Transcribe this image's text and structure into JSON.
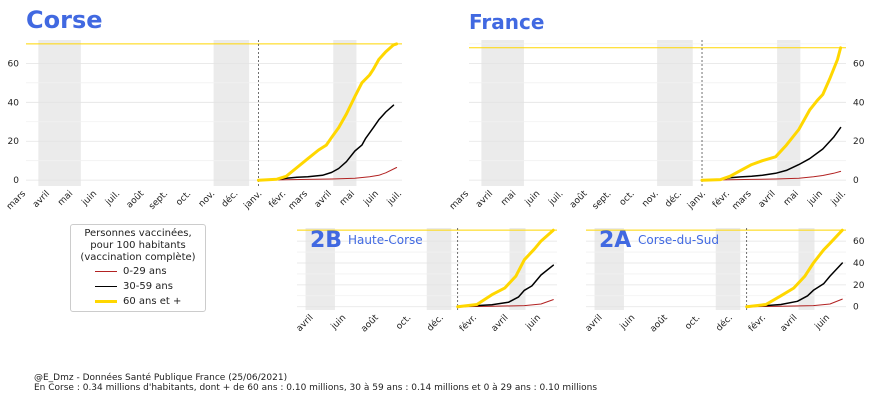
{
  "legend": {
    "title_lines": [
      "Personnes vaccinées,",
      "pour 100 habitants",
      "(vaccination complète)"
    ],
    "entries": [
      {
        "label": "0-29 ans",
        "color": "#b22222"
      },
      {
        "label": "30-59 ans",
        "color": "#000000"
      },
      {
        "label": "60 ans et +",
        "color": "#ffd700"
      }
    ]
  },
  "credits": {
    "line1": "@E_Dmz - Données Santé Publique France (25/06/2021)",
    "line2": "En Corse : 0.34 millions d'habitants, dont + de 60 ans : 0.10 millions, 30 à 59 ans : 0.14 millions et 0 à 29 ans : 0.10 millions"
  },
  "chart_data": [
    {
      "id": "corse",
      "type": "line",
      "title": "Corse",
      "subtitle": "",
      "y_ticks": [
        0,
        20,
        40,
        60
      ],
      "ylim": [
        -3,
        72
      ],
      "x_range": [
        "2020-03-01",
        "2021-07-01"
      ],
      "x_ticks": [
        {
          "date": "2020-03-01",
          "label": "mars"
        },
        {
          "date": "2020-04-01",
          "label": "avril"
        },
        {
          "date": "2020-05-01",
          "label": "mai"
        },
        {
          "date": "2020-06-01",
          "label": "juin"
        },
        {
          "date": "2020-07-01",
          "label": "juil."
        },
        {
          "date": "2020-08-01",
          "label": "août"
        },
        {
          "date": "2020-09-01",
          "label": "sept."
        },
        {
          "date": "2020-10-01",
          "label": "oct."
        },
        {
          "date": "2020-11-01",
          "label": "nov."
        },
        {
          "date": "2020-12-01",
          "label": "déc."
        },
        {
          "date": "2021-01-01",
          "label": "janv."
        },
        {
          "date": "2021-02-01",
          "label": "févr."
        },
        {
          "date": "2021-03-01",
          "label": "mars"
        },
        {
          "date": "2021-04-01",
          "label": "avril"
        },
        {
          "date": "2021-05-01",
          "label": "mai"
        },
        {
          "date": "2021-06-01",
          "label": "juin"
        },
        {
          "date": "2021-07-01",
          "label": "juil."
        }
      ],
      "lockdowns": [
        [
          "2020-03-17",
          "2020-05-11"
        ],
        [
          "2020-10-30",
          "2020-12-15"
        ],
        [
          "2021-04-03",
          "2021-05-03"
        ]
      ],
      "vline": "2020-12-27",
      "hline": 70,
      "series": [
        {
          "name": "0-29 ans",
          "color": "#b22222",
          "points": [
            [
              "2020-12-27",
              0
            ],
            [
              "2021-02-01",
              0.2
            ],
            [
              "2021-03-01",
              0.4
            ],
            [
              "2021-04-01",
              0.6
            ],
            [
              "2021-05-01",
              1
            ],
            [
              "2021-05-20",
              1.8
            ],
            [
              "2021-06-01",
              2.5
            ],
            [
              "2021-06-10",
              3.8
            ],
            [
              "2021-06-24",
              6.5
            ]
          ]
        },
        {
          "name": "30-59 ans",
          "color": "#000000",
          "points": [
            [
              "2020-12-27",
              0
            ],
            [
              "2021-01-20",
              0.3
            ],
            [
              "2021-02-01",
              1
            ],
            [
              "2021-02-15",
              1.5
            ],
            [
              "2021-03-01",
              1.8
            ],
            [
              "2021-03-20",
              2.5
            ],
            [
              "2021-04-01",
              4
            ],
            [
              "2021-04-10",
              6
            ],
            [
              "2021-04-20",
              9.5
            ],
            [
              "2021-05-01",
              15
            ],
            [
              "2021-05-10",
              18
            ],
            [
              "2021-05-15",
              21.5
            ],
            [
              "2021-05-25",
              27
            ],
            [
              "2021-06-01",
              31
            ],
            [
              "2021-06-10",
              35
            ],
            [
              "2021-06-20",
              38.5
            ]
          ]
        },
        {
          "name": "60 ans et +",
          "color": "#ffd700",
          "points": [
            [
              "2020-12-27",
              0
            ],
            [
              "2021-01-20",
              0.5
            ],
            [
              "2021-02-01",
              2
            ],
            [
              "2021-02-15",
              6.5
            ],
            [
              "2021-03-01",
              11
            ],
            [
              "2021-03-15",
              15.5
            ],
            [
              "2021-03-25",
              18
            ],
            [
              "2021-04-01",
              22
            ],
            [
              "2021-04-10",
              27
            ],
            [
              "2021-04-20",
              34
            ],
            [
              "2021-05-01",
              43
            ],
            [
              "2021-05-10",
              50
            ],
            [
              "2021-05-20",
              54
            ],
            [
              "2021-05-25",
              57
            ],
            [
              "2021-06-01",
              62
            ],
            [
              "2021-06-10",
              66
            ],
            [
              "2021-06-20",
              69.5
            ],
            [
              "2021-06-24",
              70
            ]
          ]
        }
      ]
    },
    {
      "id": "france",
      "type": "line",
      "title": "France",
      "subtitle": "",
      "y_ticks": [
        0,
        20,
        40,
        60
      ],
      "ylim": [
        -3,
        72
      ],
      "x_range": [
        "2020-03-01",
        "2021-07-01"
      ],
      "x_ticks": [
        {
          "date": "2020-03-01",
          "label": "mars"
        },
        {
          "date": "2020-04-01",
          "label": "avril"
        },
        {
          "date": "2020-05-01",
          "label": "mai"
        },
        {
          "date": "2020-06-01",
          "label": "juin"
        },
        {
          "date": "2020-07-01",
          "label": "juil."
        },
        {
          "date": "2020-08-01",
          "label": "août"
        },
        {
          "date": "2020-09-01",
          "label": "sept."
        },
        {
          "date": "2020-10-01",
          "label": "oct."
        },
        {
          "date": "2020-11-01",
          "label": "nov."
        },
        {
          "date": "2020-12-01",
          "label": "déc."
        },
        {
          "date": "2021-01-01",
          "label": "janv."
        },
        {
          "date": "2021-02-01",
          "label": "févr."
        },
        {
          "date": "2021-03-01",
          "label": "mars"
        },
        {
          "date": "2021-04-01",
          "label": "avril"
        },
        {
          "date": "2021-05-01",
          "label": "mai"
        },
        {
          "date": "2021-06-01",
          "label": "juin"
        },
        {
          "date": "2021-07-01",
          "label": "juil."
        }
      ],
      "lockdowns": [
        [
          "2020-03-17",
          "2020-05-11"
        ],
        [
          "2020-10-30",
          "2020-12-15"
        ],
        [
          "2021-04-03",
          "2021-05-03"
        ]
      ],
      "vline": "2020-12-27",
      "hline": 68,
      "series": [
        {
          "name": "0-29 ans",
          "color": "#b22222",
          "points": [
            [
              "2020-12-27",
              0
            ],
            [
              "2021-02-01",
              0.2
            ],
            [
              "2021-03-01",
              0.4
            ],
            [
              "2021-04-01",
              0.6
            ],
            [
              "2021-05-01",
              1
            ],
            [
              "2021-05-20",
              1.8
            ],
            [
              "2021-06-01",
              2.4
            ],
            [
              "2021-06-15",
              3.5
            ],
            [
              "2021-06-24",
              4.5
            ]
          ]
        },
        {
          "name": "30-59 ans",
          "color": "#000000",
          "points": [
            [
              "2020-12-27",
              0
            ],
            [
              "2021-01-20",
              0.3
            ],
            [
              "2021-02-01",
              1.2
            ],
            [
              "2021-02-15",
              1.7
            ],
            [
              "2021-03-01",
              2
            ],
            [
              "2021-03-15",
              2.5
            ],
            [
              "2021-04-01",
              3.5
            ],
            [
              "2021-04-15",
              5
            ],
            [
              "2021-05-01",
              8
            ],
            [
              "2021-05-15",
              11
            ],
            [
              "2021-06-01",
              16
            ],
            [
              "2021-06-15",
              22
            ],
            [
              "2021-06-24",
              27
            ]
          ]
        },
        {
          "name": "60 ans et +",
          "color": "#ffd700",
          "points": [
            [
              "2020-12-27",
              0
            ],
            [
              "2021-01-20",
              0.3
            ],
            [
              "2021-02-01",
              2
            ],
            [
              "2021-02-15",
              5
            ],
            [
              "2021-03-01",
              8
            ],
            [
              "2021-03-15",
              10
            ],
            [
              "2021-04-01",
              12
            ],
            [
              "2021-04-15",
              18
            ],
            [
              "2021-05-01",
              26
            ],
            [
              "2021-05-15",
              36
            ],
            [
              "2021-05-25",
              41
            ],
            [
              "2021-06-01",
              44
            ],
            [
              "2021-06-10",
              52
            ],
            [
              "2021-06-20",
              62
            ],
            [
              "2021-06-24",
              68
            ]
          ]
        }
      ]
    },
    {
      "id": "haute-corse",
      "type": "line",
      "title": "2B",
      "subtitle": "Haute-Corse",
      "y_ticks": [],
      "ylim": [
        -3,
        72
      ],
      "x_range": [
        "2020-03-01",
        "2021-07-01"
      ],
      "x_ticks": [
        {
          "date": "2020-04-01",
          "label": "avril"
        },
        {
          "date": "2020-06-01",
          "label": "juin"
        },
        {
          "date": "2020-08-01",
          "label": "août"
        },
        {
          "date": "2020-10-01",
          "label": "oct."
        },
        {
          "date": "2020-12-01",
          "label": "déc."
        },
        {
          "date": "2021-02-01",
          "label": "févr."
        },
        {
          "date": "2021-04-01",
          "label": "avril"
        },
        {
          "date": "2021-06-01",
          "label": "juin"
        }
      ],
      "lockdowns": [
        [
          "2020-03-17",
          "2020-05-11"
        ],
        [
          "2020-10-30",
          "2020-12-15"
        ],
        [
          "2021-04-03",
          "2021-05-03"
        ]
      ],
      "vline": "2020-12-27",
      "hline": 70,
      "series": [
        {
          "name": "0-29 ans",
          "color": "#b22222",
          "points": [
            [
              "2020-12-27",
              0
            ],
            [
              "2021-03-01",
              0.4
            ],
            [
              "2021-05-01",
              1
            ],
            [
              "2021-06-01",
              2.5
            ],
            [
              "2021-06-24",
              6.5
            ]
          ]
        },
        {
          "name": "30-59 ans",
          "color": "#000000",
          "points": [
            [
              "2020-12-27",
              0
            ],
            [
              "2021-02-01",
              1
            ],
            [
              "2021-03-01",
              1.8
            ],
            [
              "2021-04-01",
              4
            ],
            [
              "2021-04-20",
              9
            ],
            [
              "2021-05-01",
              15
            ],
            [
              "2021-05-15",
              19
            ],
            [
              "2021-06-01",
              29
            ],
            [
              "2021-06-24",
              38
            ]
          ]
        },
        {
          "name": "60 ans et +",
          "color": "#ffd700",
          "points": [
            [
              "2020-12-27",
              0
            ],
            [
              "2021-02-01",
              2
            ],
            [
              "2021-03-01",
              11
            ],
            [
              "2021-03-25",
              17
            ],
            [
              "2021-04-15",
              28
            ],
            [
              "2021-05-01",
              43
            ],
            [
              "2021-05-20",
              53
            ],
            [
              "2021-06-01",
              60
            ],
            [
              "2021-06-24",
              70
            ]
          ]
        }
      ]
    },
    {
      "id": "corse-du-sud",
      "type": "line",
      "title": "2A",
      "subtitle": "Corse-du-Sud",
      "y_ticks": [
        0,
        20,
        40,
        60
      ],
      "ylim": [
        -3,
        72
      ],
      "x_range": [
        "2020-03-01",
        "2021-07-01"
      ],
      "x_ticks": [
        {
          "date": "2020-04-01",
          "label": "avril"
        },
        {
          "date": "2020-06-01",
          "label": "juin"
        },
        {
          "date": "2020-08-01",
          "label": "août"
        },
        {
          "date": "2020-10-01",
          "label": "oct."
        },
        {
          "date": "2020-12-01",
          "label": "déc."
        },
        {
          "date": "2021-02-01",
          "label": "févr."
        },
        {
          "date": "2021-04-01",
          "label": "avril"
        },
        {
          "date": "2021-06-01",
          "label": "juin"
        }
      ],
      "lockdowns": [
        [
          "2020-03-17",
          "2020-05-11"
        ],
        [
          "2020-10-30",
          "2020-12-15"
        ],
        [
          "2021-04-03",
          "2021-05-03"
        ]
      ],
      "vline": "2020-12-27",
      "hline": 70,
      "series": [
        {
          "name": "0-29 ans",
          "color": "#b22222",
          "points": [
            [
              "2020-12-27",
              0
            ],
            [
              "2021-03-01",
              0.4
            ],
            [
              "2021-05-01",
              1
            ],
            [
              "2021-06-01",
              2.5
            ],
            [
              "2021-06-24",
              7
            ]
          ]
        },
        {
          "name": "30-59 ans",
          "color": "#000000",
          "points": [
            [
              "2020-12-27",
              0
            ],
            [
              "2021-02-01",
              1
            ],
            [
              "2021-03-01",
              2
            ],
            [
              "2021-04-01",
              5
            ],
            [
              "2021-04-20",
              10
            ],
            [
              "2021-05-01",
              15
            ],
            [
              "2021-05-20",
              21
            ],
            [
              "2021-06-01",
              28
            ],
            [
              "2021-06-24",
              40
            ]
          ]
        },
        {
          "name": "60 ans et +",
          "color": "#ffd700",
          "points": [
            [
              "2020-12-27",
              0
            ],
            [
              "2021-02-01",
              2
            ],
            [
              "2021-03-01",
              10
            ],
            [
              "2021-03-25",
              17
            ],
            [
              "2021-04-15",
              28
            ],
            [
              "2021-05-01",
              40
            ],
            [
              "2021-05-20",
              52
            ],
            [
              "2021-06-01",
              58
            ],
            [
              "2021-06-24",
              70
            ]
          ]
        }
      ]
    }
  ]
}
